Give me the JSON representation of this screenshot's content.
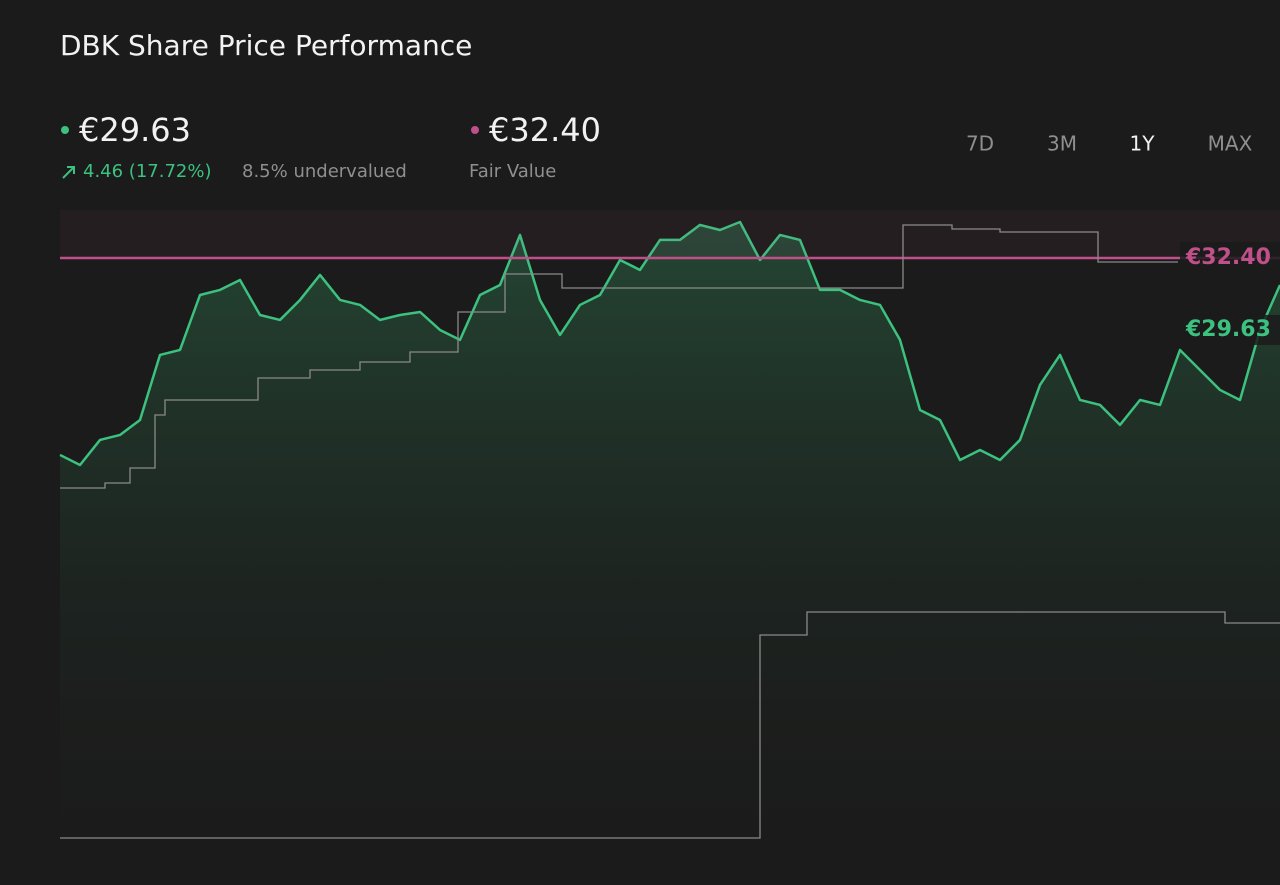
{
  "chart_data": {
    "type": "line",
    "title": "DBK Share Price Performance",
    "summary": {
      "price": "€29.63",
      "change": "4.46 (17.72%)",
      "valuation": "8.5% undervalued",
      "fair_value": "€32.40"
    },
    "ranges": [
      "7D",
      "3M",
      "1Y",
      "MAX"
    ],
    "active_range": "1Y",
    "ylim": [
      -27.11,
      37.32
    ],
    "y2lim": [
      0,
      100
    ],
    "series": [
      {
        "color": "#3cc17f",
        "values": [
          12.19,
          11.16,
          13.73,
          14.24,
          15.78,
          22.45,
          22.96,
          28.6,
          29.12,
          30.14,
          26.55,
          26.04,
          28.09,
          30.66,
          28.09,
          27.58,
          26.04,
          26.55,
          26.86,
          25.01,
          23.99,
          28.6,
          29.63,
          34.76,
          28.09,
          24.5,
          27.58,
          28.6,
          32.19,
          31.17,
          34.25,
          34.25,
          35.79,
          35.27,
          36.09,
          32.19,
          34.76,
          34.25,
          29.12,
          29.12,
          28.09,
          27.58,
          23.99,
          16.8,
          15.78,
          11.67,
          12.7,
          11.67,
          13.73,
          19.37,
          22.45,
          17.83,
          17.32,
          15.27,
          17.83,
          17.32,
          22.96,
          20.91,
          18.86,
          17.83,
          25.01,
          29.63
        ],
        "value_label": "€29.63"
      },
      {
        "name": "Fair Value",
        "color": "#c0508a",
        "values": [
          32.4
        ],
        "value_label": "€32.40"
      },
      {
        "color": "#8a8a8a",
        "axis": "y2",
        "x": [
          0,
          2.25,
          3.5,
          4.75,
          5.25,
          9.9,
          12.5,
          15,
          17.5,
          19.9,
          22.25,
          25.1,
          42.15,
          44.6,
          47,
          51.9,
          55.9
        ],
        "values": [
          55.73,
          56.53,
          58.92,
          67.36,
          69.75,
          73.25,
          74.52,
          75.8,
          77.39,
          83.76,
          89.81,
          87.58,
          97.61,
          96.97,
          96.5,
          91.72,
          91.72
        ]
      },
      {
        "color": "#8a8a8a",
        "axis": "y2",
        "x": [
          0,
          35,
          37.35,
          58.25,
          61
        ],
        "values": [
          0,
          32.32,
          35.99,
          34.24,
          34.24
        ]
      }
    ]
  }
}
